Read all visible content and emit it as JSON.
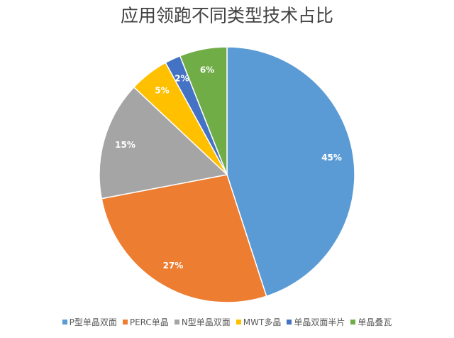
{
  "chart_data": {
    "type": "pie",
    "title": "应用领跑不同类型技术占比",
    "categories": [
      "P型单晶双面",
      "PERC单晶",
      "N型单晶双面",
      "MWT多晶",
      "单晶双面半片",
      "单晶叠瓦"
    ],
    "values": [
      45,
      27,
      15,
      5,
      2,
      6
    ],
    "value_labels": [
      "45%",
      "27%",
      "15%",
      "5%",
      "2%",
      "6%"
    ],
    "colors": [
      "#5b9bd5",
      "#ed7d31",
      "#a5a5a5",
      "#ffc000",
      "#4472c4",
      "#70ad47"
    ],
    "legend": "bottom"
  }
}
